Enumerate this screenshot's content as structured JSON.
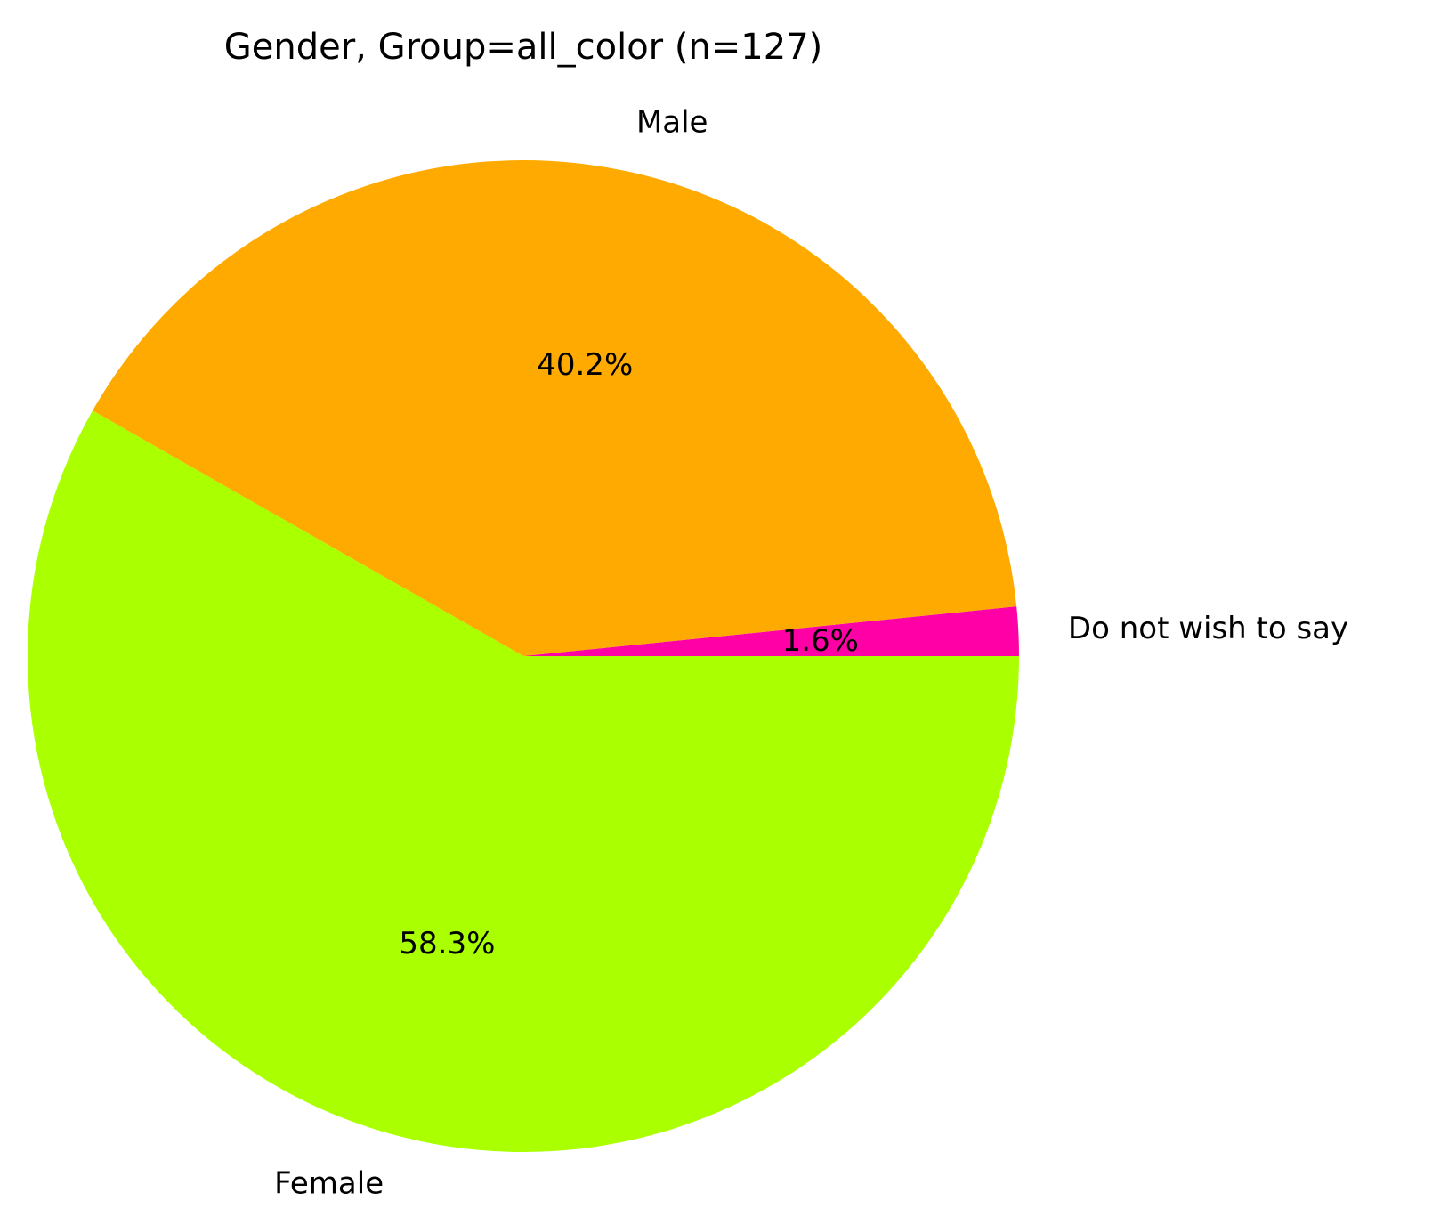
{
  "chart_data": {
    "type": "pie",
    "title": "Gender, Group=all_color (n=127)",
    "slices": [
      {
        "label": "Do not wish to say",
        "value": 1.6,
        "pct_label": "1.6%",
        "color": "#ff00a6"
      },
      {
        "label": "Male",
        "value": 40.2,
        "pct_label": "40.2%",
        "color": "#ffaa00"
      },
      {
        "label": "Female",
        "value": 58.3,
        "pct_label": "58.3%",
        "color": "#aaff00"
      }
    ],
    "legend": "none"
  }
}
